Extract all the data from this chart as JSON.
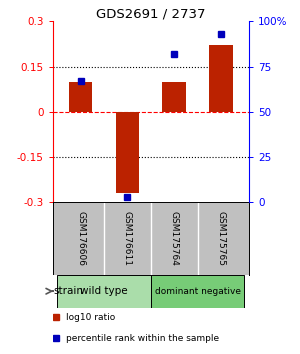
{
  "title": "GDS2691 / 2737",
  "samples": [
    "GSM176606",
    "GSM176611",
    "GSM175764",
    "GSM175765"
  ],
  "log10_ratio": [
    0.1,
    -0.27,
    0.1,
    0.22
  ],
  "percentile_rank": [
    67,
    3,
    82,
    93
  ],
  "groups": [
    {
      "label": "wild type",
      "color": "#aaddaa",
      "indices": [
        0,
        1
      ]
    },
    {
      "label": "dominant negative",
      "color": "#77cc77",
      "indices": [
        2,
        3
      ]
    }
  ],
  "ylim_left": [
    -0.3,
    0.3
  ],
  "ylim_right": [
    0,
    100
  ],
  "yticks_left": [
    -0.3,
    -0.15,
    0,
    0.15,
    0.3
  ],
  "yticks_right": [
    0,
    25,
    50,
    75,
    100
  ],
  "ytick_labels_left": [
    "-0.3",
    "-0.15",
    "0",
    "0.15",
    "0.3"
  ],
  "ytick_labels_right": [
    "0",
    "25",
    "50",
    "75",
    "100%"
  ],
  "bar_color": "#bb2200",
  "dot_color": "#0000bb",
  "bar_width": 0.5,
  "bg_color_gsm": "#c0c0c0",
  "legend_bar_label": "log10 ratio",
  "legend_dot_label": "percentile rank within the sample"
}
